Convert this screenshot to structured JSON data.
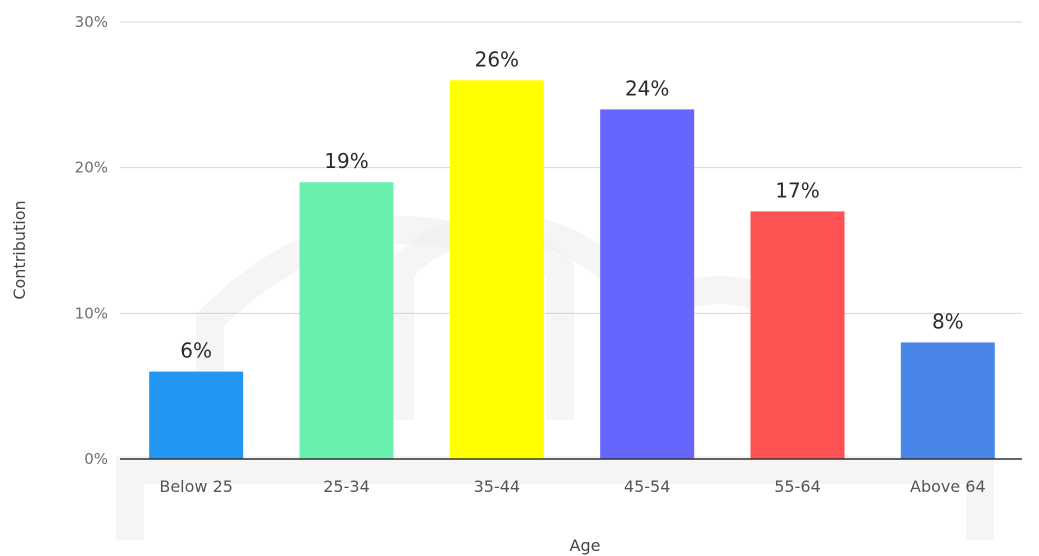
{
  "chart_data": {
    "type": "bar",
    "title": "",
    "xlabel": "Age",
    "ylabel": "Contribution",
    "ylim": [
      0,
      30
    ],
    "yticks": [
      "0%",
      "10%",
      "20%",
      "30%"
    ],
    "ytick_values": [
      0,
      10,
      20,
      30
    ],
    "grid": true,
    "categories": [
      "Below 25",
      "25-34",
      "35-44",
      "45-54",
      "55-64",
      "Above 64"
    ],
    "values": [
      6,
      19,
      26,
      24,
      17,
      8
    ],
    "value_labels": [
      "6%",
      "19%",
      "26%",
      "24%",
      "17%",
      "8%"
    ],
    "colors": [
      "#2196F3",
      "#69F0AE",
      "#FFFF00",
      "#6666FF",
      "#FF5252",
      "#4A86E8"
    ],
    "gridline_color": "#d4d4d4",
    "baseline_color": "#333333"
  }
}
